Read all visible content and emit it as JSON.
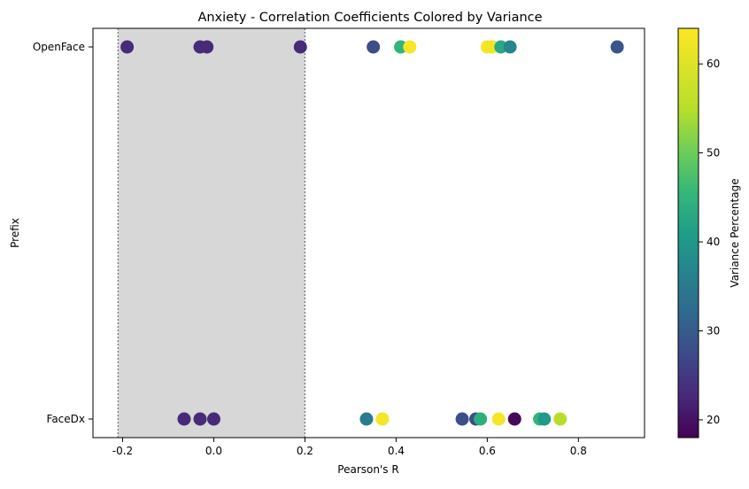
{
  "chart_data": {
    "type": "scatter",
    "title": "Anxiety - Correlation Coefficients Colored by Variance",
    "xlabel": "Pearson's R",
    "ylabel": "Prefix",
    "xlim": [
      -0.265,
      0.945
    ],
    "x_ticks": [
      "-0.2",
      "0.0",
      "0.2",
      "0.4",
      "0.6",
      "0.8"
    ],
    "x_tick_values": [
      -0.2,
      0.0,
      0.2,
      0.4,
      0.6,
      0.8
    ],
    "categories": [
      "OpenFace",
      "FaceDx"
    ],
    "shaded_region": [
      -0.21,
      0.2
    ],
    "colorbar": {
      "label": "Variance Percentage",
      "range": [
        18,
        64
      ],
      "ticks": [
        "20",
        "30",
        "40",
        "50",
        "60"
      ],
      "tick_values": [
        20,
        30,
        40,
        50,
        60
      ],
      "colormap": "viridis"
    },
    "points": [
      {
        "prefix": "OpenFace",
        "r": -0.19,
        "variance": 23
      },
      {
        "prefix": "OpenFace",
        "r": -0.03,
        "variance": 23
      },
      {
        "prefix": "OpenFace",
        "r": -0.015,
        "variance": 23
      },
      {
        "prefix": "OpenFace",
        "r": 0.19,
        "variance": 23
      },
      {
        "prefix": "OpenFace",
        "r": 0.35,
        "variance": 28
      },
      {
        "prefix": "OpenFace",
        "r": 0.41,
        "variance": 45
      },
      {
        "prefix": "OpenFace",
        "r": 0.43,
        "variance": 63
      },
      {
        "prefix": "OpenFace",
        "r": 0.6,
        "variance": 63
      },
      {
        "prefix": "OpenFace",
        "r": 0.61,
        "variance": 62
      },
      {
        "prefix": "OpenFace",
        "r": 0.63,
        "variance": 43
      },
      {
        "prefix": "OpenFace",
        "r": 0.65,
        "variance": 37
      },
      {
        "prefix": "OpenFace",
        "r": 0.885,
        "variance": 29
      },
      {
        "prefix": "FaceDx",
        "r": -0.065,
        "variance": 23
      },
      {
        "prefix": "FaceDx",
        "r": -0.03,
        "variance": 23
      },
      {
        "prefix": "FaceDx",
        "r": 0.0,
        "variance": 23
      },
      {
        "prefix": "FaceDx",
        "r": 0.335,
        "variance": 35
      },
      {
        "prefix": "FaceDx",
        "r": 0.37,
        "variance": 63
      },
      {
        "prefix": "FaceDx",
        "r": 0.545,
        "variance": 28
      },
      {
        "prefix": "FaceDx",
        "r": 0.575,
        "variance": 28
      },
      {
        "prefix": "FaceDx",
        "r": 0.585,
        "variance": 44
      },
      {
        "prefix": "FaceDx",
        "r": 0.625,
        "variance": 63
      },
      {
        "prefix": "FaceDx",
        "r": 0.66,
        "variance": 62
      },
      {
        "prefix": "FaceDx",
        "r": 0.66,
        "variance": 19
      },
      {
        "prefix": "FaceDx",
        "r": 0.715,
        "variance": 45
      },
      {
        "prefix": "FaceDx",
        "r": 0.725,
        "variance": 40
      },
      {
        "prefix": "FaceDx",
        "r": 0.76,
        "variance": 55
      }
    ]
  }
}
